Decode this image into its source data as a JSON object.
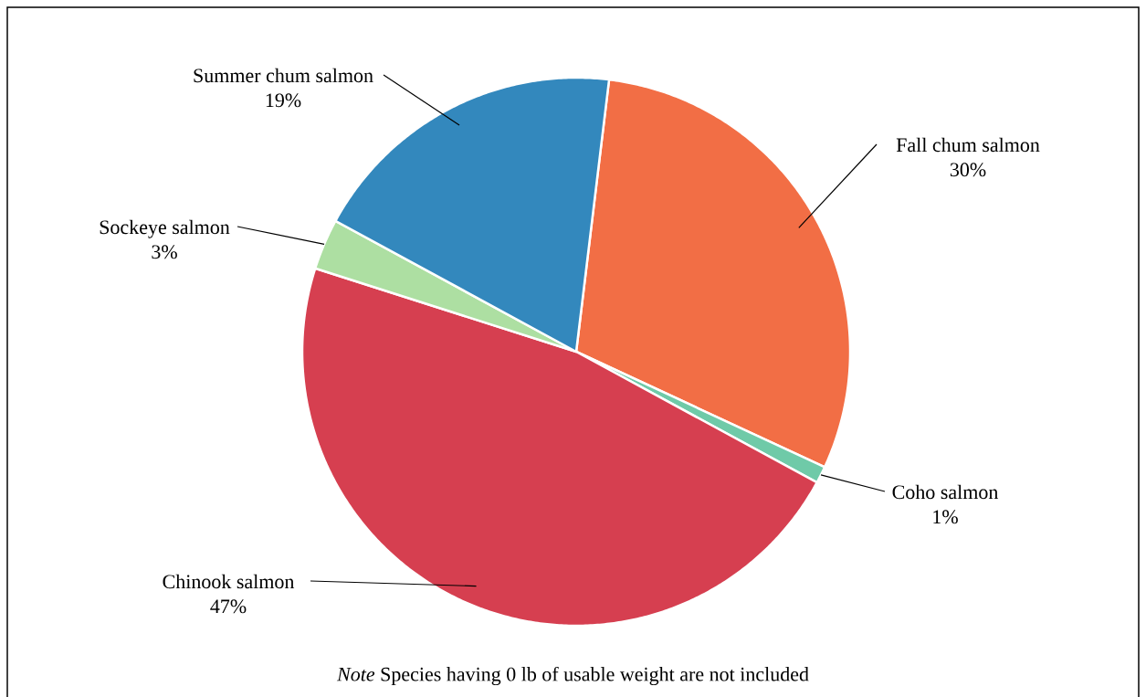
{
  "chart_data": {
    "type": "pie",
    "categories": [
      "Fall chum salmon",
      "Coho salmon",
      "Chinook salmon",
      "Sockeye salmon",
      "Summer chum salmon"
    ],
    "values": [
      30,
      1,
      47,
      3,
      19
    ],
    "value_labels": [
      "30%",
      "1%",
      "47%",
      "3%",
      "19%"
    ],
    "colors": [
      "#f26e45",
      "#6fcaa8",
      "#d63f50",
      "#addfa2",
      "#3388bd"
    ],
    "annotations": [
      "*Note* Species having 0 lb of usable weight are not included"
    ]
  }
}
